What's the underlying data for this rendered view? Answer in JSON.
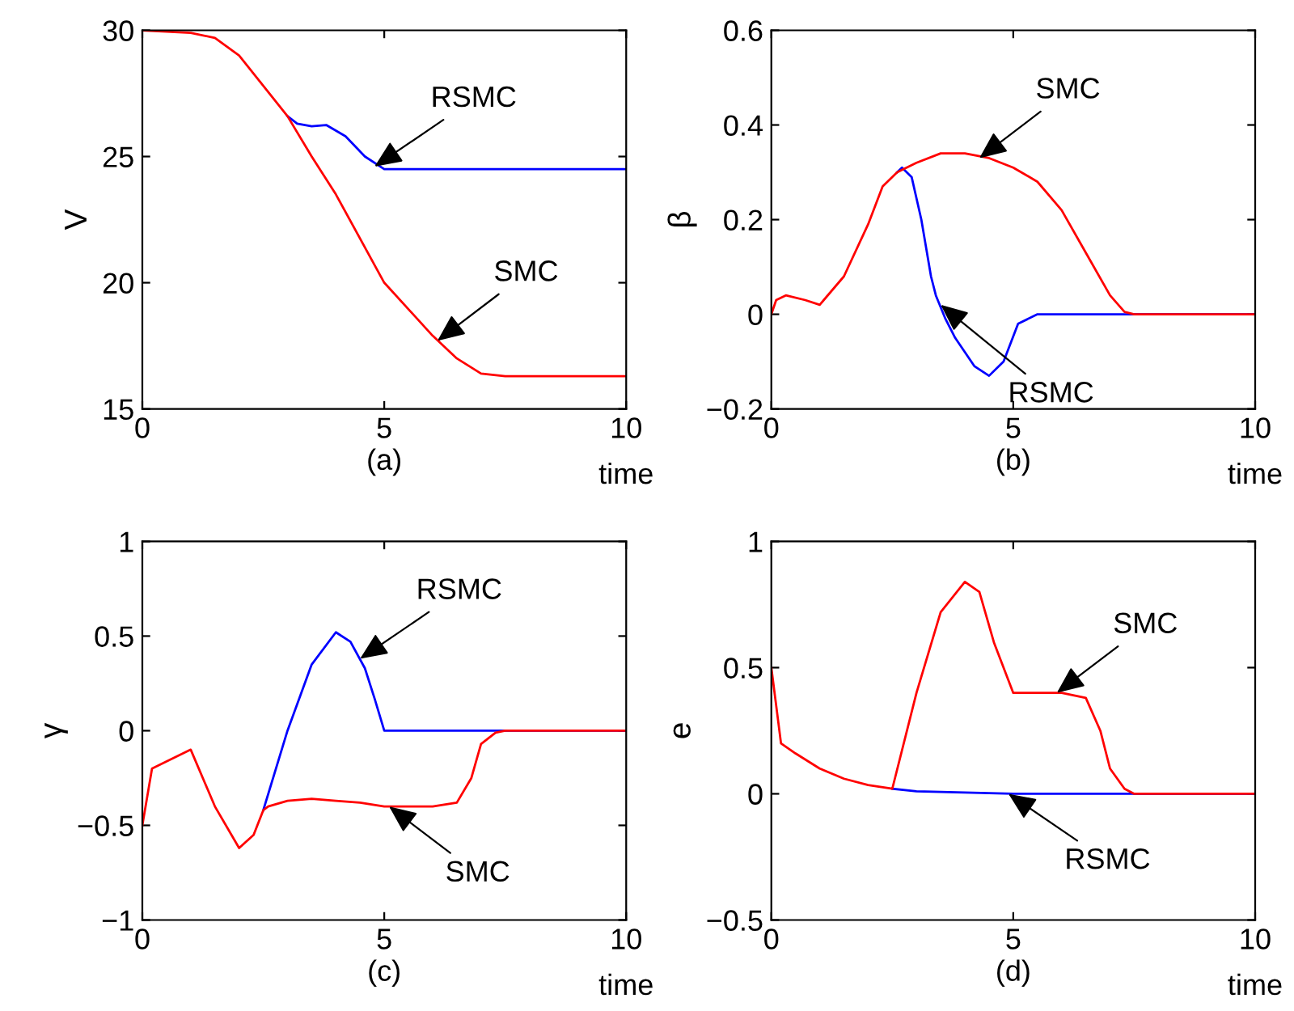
{
  "chart_data": [
    {
      "type": "line",
      "xlabel": "(a)",
      "ylabel": "V",
      "xlim": [
        0,
        10
      ],
      "ylim": [
        15,
        30
      ],
      "xticks": [
        0,
        5,
        10
      ],
      "yticks": [
        15,
        20,
        25,
        30
      ],
      "grid": false,
      "legend": false,
      "series": [
        {
          "color": "#0000ff",
          "x": [
            3,
            3.2,
            3.5,
            3.8,
            4.2,
            4.6,
            5,
            10
          ],
          "values": [
            26.6,
            26.3,
            26.2,
            26.25,
            25.8,
            25.0,
            24.5,
            24.5
          ]
        },
        {
          "color": "#ff0000",
          "x": [
            0,
            1,
            1.5,
            2,
            2.5,
            3,
            3.5,
            4,
            5,
            6,
            6.5,
            7,
            7.5,
            10
          ],
          "values": [
            30,
            29.9,
            29.7,
            29,
            27.8,
            26.6,
            25.0,
            23.5,
            20.0,
            17.9,
            17,
            16.4,
            16.3,
            16.3
          ]
        }
      ],
      "annotations": [
        {
          "text": "RSMC",
          "x": 4.8,
          "y": 24.6
        },
        {
          "text": "SMC",
          "x": 6.1,
          "y": 17.7
        },
        "time"
      ]
    },
    {
      "type": "line",
      "xlabel": "(b)",
      "ylabel": "β",
      "xlim": [
        0,
        10
      ],
      "ylim": [
        -0.2,
        0.6
      ],
      "xticks": [
        0,
        5,
        10
      ],
      "yticks": [
        {
          "value": -0.2,
          "label": "−0.2"
        },
        0,
        0.2,
        0.4,
        0.6
      ],
      "grid": false,
      "legend": false,
      "series": [
        {
          "color": "#0000ff",
          "x": [
            2.6,
            2.7,
            2.9,
            3.1,
            3.3,
            3.4,
            3.6,
            3.8,
            4.2,
            4.5,
            4.8,
            5.1,
            5.5,
            10
          ],
          "values": [
            0.3,
            0.31,
            0.29,
            0.2,
            0.08,
            0.04,
            -0.01,
            -0.05,
            -0.11,
            -0.13,
            -0.1,
            -0.02,
            0,
            0
          ]
        },
        {
          "color": "#ff0000",
          "x": [
            0,
            0.1,
            0.3,
            0.7,
            1,
            1.5,
            2,
            2.3,
            2.6,
            3,
            3.5,
            4,
            4.5,
            5,
            5.5,
            6,
            6.5,
            7,
            7.3,
            7.5,
            10
          ],
          "values": [
            0,
            0.03,
            0.04,
            0.03,
            0.02,
            0.08,
            0.19,
            0.27,
            0.3,
            0.32,
            0.34,
            0.34,
            0.33,
            0.31,
            0.28,
            0.22,
            0.13,
            0.04,
            0.005,
            0,
            0
          ]
        }
      ],
      "annotations": [
        {
          "text": "SMC",
          "x": 4.3,
          "y": 0.33
        },
        {
          "text": "RSMC",
          "x": 3.5,
          "y": 0.02
        },
        "time"
      ]
    },
    {
      "type": "line",
      "xlabel": "(c)",
      "ylabel": "γ",
      "xlim": [
        0,
        10
      ],
      "ylim": [
        -1,
        1
      ],
      "xticks": [
        0,
        5,
        10
      ],
      "yticks": [
        {
          "value": -1,
          "label": "−1"
        },
        {
          "value": -0.5,
          "label": "−0.5"
        },
        0,
        0.5,
        1
      ],
      "grid": false,
      "legend": false,
      "series": [
        {
          "color": "#0000ff",
          "x": [
            2.5,
            3,
            3.5,
            4,
            4.3,
            4.6,
            4.8,
            5,
            10
          ],
          "values": [
            -0.42,
            0.0,
            0.35,
            0.52,
            0.47,
            0.33,
            0.17,
            0,
            0
          ]
        },
        {
          "color": "#ff0000",
          "x": [
            0,
            0.2,
            1,
            1.5,
            2,
            2.3,
            2.5,
            2.6,
            3,
            3.5,
            4,
            4.5,
            5,
            6,
            6.5,
            6.8,
            7,
            7.3,
            7.5,
            10
          ],
          "values": [
            -0.5,
            -0.2,
            -0.1,
            -0.4,
            -0.62,
            -0.55,
            -0.42,
            -0.4,
            -0.37,
            -0.36,
            -0.37,
            -0.38,
            -0.4,
            -0.4,
            -0.38,
            -0.25,
            -0.07,
            -0.01,
            0,
            0
          ]
        }
      ],
      "annotations": [
        {
          "text": "RSMC",
          "x": 4.5,
          "y": 0.38
        },
        {
          "text": "SMC",
          "x": 5.1,
          "y": -0.4
        },
        "time"
      ]
    },
    {
      "type": "line",
      "xlabel": "(d)",
      "ylabel": "e",
      "xlim": [
        0,
        10
      ],
      "ylim": [
        -0.5,
        1
      ],
      "xticks": [
        0,
        5,
        10
      ],
      "yticks": [
        {
          "value": -0.5,
          "label": "−0.5"
        },
        0,
        0.5,
        1
      ],
      "grid": false,
      "legend": false,
      "series": [
        {
          "color": "#0000ff",
          "x": [
            2.5,
            3,
            4,
            5,
            10
          ],
          "values": [
            0.02,
            0.01,
            0.005,
            0,
            0
          ]
        },
        {
          "color": "#ff0000",
          "x": [
            0,
            0.2,
            0.5,
            1,
            1.5,
            2,
            2.5,
            3,
            3.5,
            4,
            4.3,
            4.6,
            5,
            6,
            6.5,
            6.8,
            7,
            7.3,
            7.5,
            10
          ],
          "values": [
            0.5,
            0.2,
            0.16,
            0.1,
            0.06,
            0.035,
            0.02,
            0.4,
            0.72,
            0.84,
            0.8,
            0.6,
            0.4,
            0.4,
            0.38,
            0.25,
            0.1,
            0.02,
            0,
            0
          ]
        }
      ],
      "annotations": [
        {
          "text": "SMC",
          "x": 5.9,
          "y": 0.4
        },
        {
          "text": "RSMC",
          "x": 4.9,
          "y": 0.0
        },
        "time"
      ]
    }
  ]
}
